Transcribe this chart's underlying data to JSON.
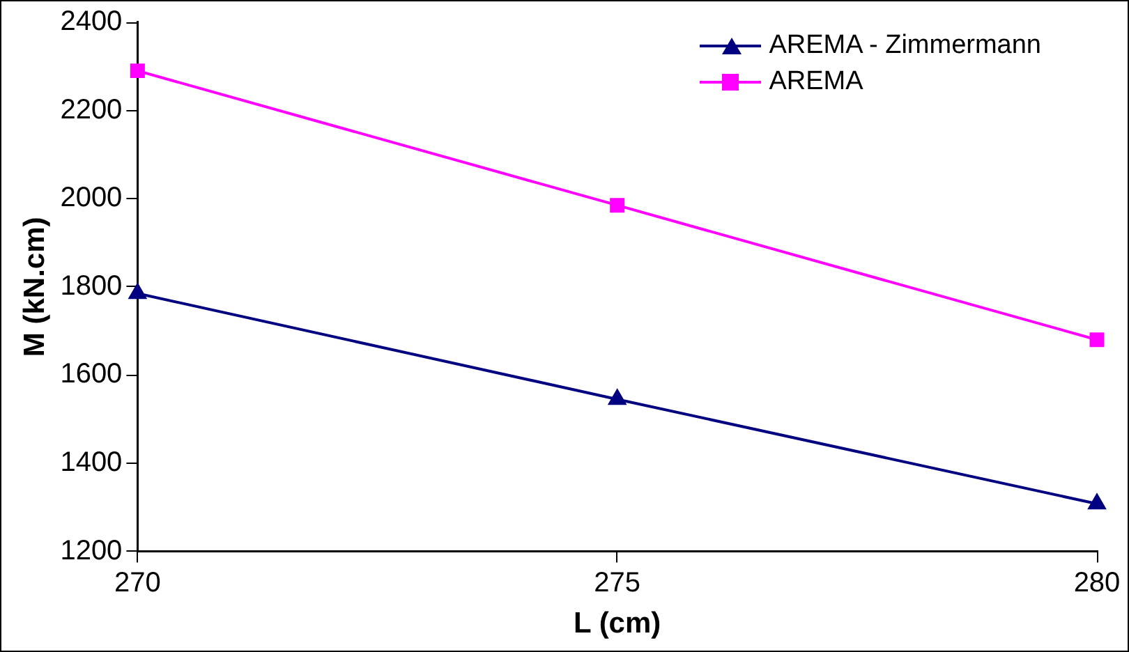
{
  "chart_data": {
    "type": "line",
    "xlabel": "L (cm)",
    "ylabel": "M (kN.cm)",
    "x": [
      270,
      275,
      280
    ],
    "xlim": [
      270,
      280
    ],
    "xticks": [
      270,
      275,
      280
    ],
    "ylim": [
      1200,
      2400
    ],
    "yticks": [
      1200,
      1400,
      1600,
      1800,
      2000,
      2200,
      2400
    ],
    "grid": false,
    "legend": "top right",
    "line_style": "solid",
    "series": [
      {
        "name": "AREMA - Zimmermann",
        "color": "#000080",
        "marker": "triangle",
        "values": [
          1785,
          1545,
          1308
        ]
      },
      {
        "name": "AREMA",
        "color": "#ff00ff",
        "marker": "square",
        "values": [
          2290,
          1985,
          1680
        ]
      }
    ]
  }
}
